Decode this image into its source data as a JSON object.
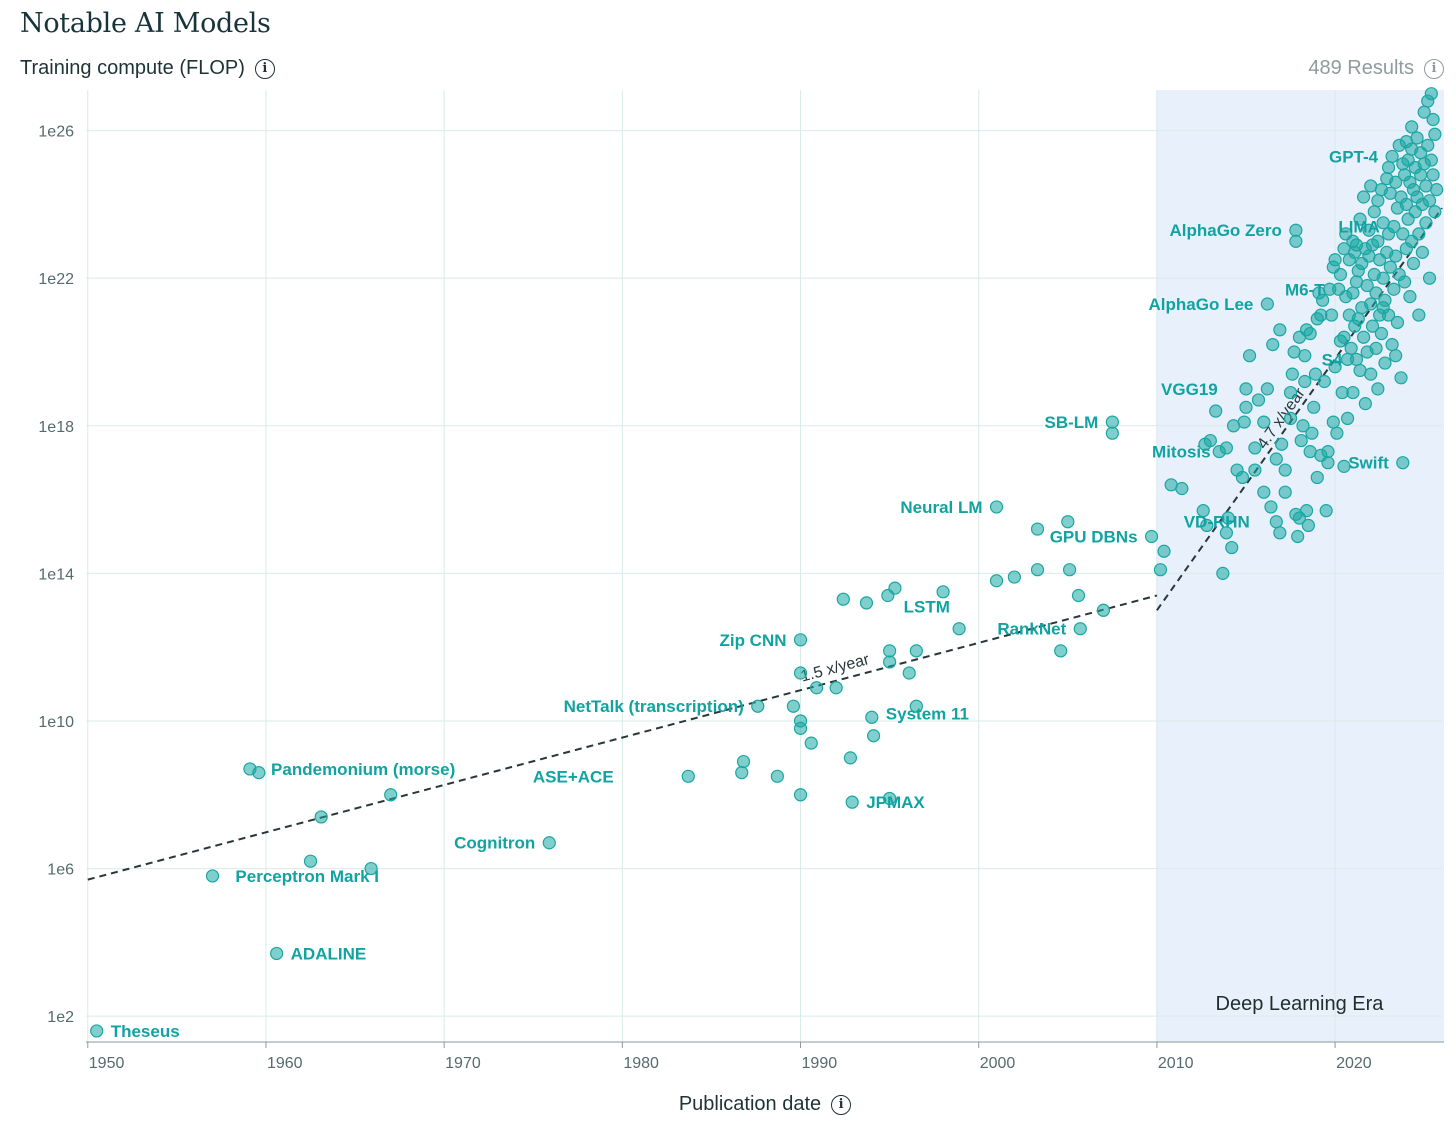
{
  "header": {
    "title": "Notable AI Models",
    "subtitle": "Training compute (FLOP)",
    "results": "489 Results"
  },
  "colors": {
    "point": "#19a7a3",
    "label": "#11a3a1",
    "era_band": "#e8f0fc",
    "grid": "#d8ebe9",
    "trend": "#27383a"
  },
  "icons": {
    "info": "info-circle-icon"
  },
  "chart_data": {
    "type": "scatter",
    "xlabel": "Publication date",
    "ylabel": "Training compute (FLOP)",
    "y_scale": "log",
    "xlim": [
      1949.9,
      2026
    ],
    "ylim_log10": [
      1.3,
      27.1
    ],
    "x_ticks": [
      "1950",
      "1960",
      "1970",
      "1980",
      "1990",
      "2000",
      "2010",
      "2020"
    ],
    "y_ticks": [
      "1e2",
      "1e6",
      "1e10",
      "1e14",
      "1e18",
      "1e22",
      "1e26"
    ],
    "region": {
      "label": "Deep Learning Era",
      "x_start": 2010,
      "x_end": 2026
    },
    "trends": [
      {
        "label": "1.5 x/year",
        "from": [
          1950,
          5.7
        ],
        "to": [
          2010,
          13.4
        ]
      },
      {
        "label": "4.7 x/year",
        "from": [
          2010,
          13.0
        ],
        "to": [
          2026,
          23.9
        ]
      }
    ],
    "labeled_points": [
      {
        "name": "Theseus",
        "x": 1950.5,
        "y": 1.6
      },
      {
        "name": "Perceptron Mark I",
        "x": 1957.5,
        "y": 5.8
      },
      {
        "name": "ADALINE",
        "x": 1960.6,
        "y": 3.7
      },
      {
        "name": "Pandemonium (morse)",
        "x": 1959.5,
        "y": 8.7
      },
      {
        "name": "Cognitron",
        "x": 1975.9,
        "y": 6.7
      },
      {
        "name": "ASE+ACE",
        "x": 1980.3,
        "y": 8.5
      },
      {
        "name": "NetTalk (transcription)",
        "x": 1987.6,
        "y": 10.4
      },
      {
        "name": "Zip CNN",
        "x": 1990.0,
        "y": 12.2
      },
      {
        "name": "System 11",
        "x": 1994.0,
        "y": 10.2
      },
      {
        "name": "JPMAX",
        "x": 1992.9,
        "y": 7.8
      },
      {
        "name": "LSTM",
        "x": 1995.0,
        "y": 13.1
      },
      {
        "name": "RankNet",
        "x": 2005.7,
        "y": 12.5
      },
      {
        "name": "Neural LM",
        "x": 2001.0,
        "y": 15.8
      },
      {
        "name": "GPU DBNs",
        "x": 2009.7,
        "y": 15.0
      },
      {
        "name": "SB-LM",
        "x": 2007.5,
        "y": 18.1
      },
      {
        "name": "Mitosis",
        "x": 2013.8,
        "y": 17.3
      },
      {
        "name": "VD-RHN",
        "x": 2016.0,
        "y": 15.4
      },
      {
        "name": "VGG19",
        "x": 2014.2,
        "y": 19.0
      },
      {
        "name": "AlphaGo Lee",
        "x": 2016.2,
        "y": 21.3
      },
      {
        "name": "AlphaGo Zero",
        "x": 2017.8,
        "y": 23.3
      },
      {
        "name": "M6-T",
        "x": 2020.2,
        "y": 21.7
      },
      {
        "name": "S4",
        "x": 2021.2,
        "y": 19.8
      },
      {
        "name": "Swift",
        "x": 2023.8,
        "y": 17.0
      },
      {
        "name": "LIMA",
        "x": 2023.3,
        "y": 23.4
      },
      {
        "name": "GPT-4",
        "x": 2023.2,
        "y": 25.3
      }
    ],
    "points": [
      [
        1950.5,
        1.6
      ],
      [
        1957.0,
        5.8
      ],
      [
        1959.1,
        8.7
      ],
      [
        1959.6,
        8.6
      ],
      [
        1960.6,
        3.7
      ],
      [
        1962.5,
        6.2
      ],
      [
        1963.1,
        7.4
      ],
      [
        1965.9,
        6.0
      ],
      [
        1967.0,
        8.0
      ],
      [
        1975.9,
        6.7
      ],
      [
        1983.7,
        8.5
      ],
      [
        1986.7,
        8.6
      ],
      [
        1986.8,
        8.9
      ],
      [
        1988.7,
        8.5
      ],
      [
        1987.6,
        10.4
      ],
      [
        1989.6,
        10.4
      ],
      [
        1990.0,
        10.0
      ],
      [
        1990.0,
        9.8
      ],
      [
        1990.0,
        8.0
      ],
      [
        1990.0,
        11.3
      ],
      [
        1990.0,
        12.2
      ],
      [
        1990.6,
        9.4
      ],
      [
        1990.9,
        10.9
      ],
      [
        1992.0,
        10.9
      ],
      [
        1992.4,
        13.3
      ],
      [
        1992.8,
        9.0
      ],
      [
        1992.9,
        7.8
      ],
      [
        1993.7,
        13.2
      ],
      [
        1994.0,
        10.1
      ],
      [
        1994.1,
        9.6
      ],
      [
        1994.9,
        13.4
      ],
      [
        1995.0,
        11.6
      ],
      [
        1995.0,
        11.9
      ],
      [
        1995.0,
        7.9
      ],
      [
        1995.3,
        13.6
      ],
      [
        1996.1,
        11.3
      ],
      [
        1996.5,
        11.9
      ],
      [
        1996.5,
        10.4
      ],
      [
        1998.0,
        13.5
      ],
      [
        1998.9,
        12.5
      ],
      [
        2001.0,
        15.8
      ],
      [
        2001.0,
        13.8
      ],
      [
        2002.0,
        13.9
      ],
      [
        2003.3,
        15.2
      ],
      [
        2003.3,
        14.1
      ],
      [
        2004.6,
        11.9
      ],
      [
        2005.0,
        15.4
      ],
      [
        2005.1,
        14.1
      ],
      [
        2005.6,
        13.4
      ],
      [
        2005.7,
        12.5
      ],
      [
        2007.0,
        13.0
      ],
      [
        2007.5,
        18.1
      ],
      [
        2007.5,
        17.8
      ],
      [
        2009.7,
        15.0
      ],
      [
        2010.4,
        14.6
      ],
      [
        2010.2,
        14.1
      ],
      [
        2010.8,
        16.4
      ],
      [
        2011.4,
        16.3
      ],
      [
        2012.6,
        15.7
      ],
      [
        2012.8,
        15.3
      ],
      [
        2012.7,
        17.5
      ],
      [
        2013.0,
        17.6
      ],
      [
        2013.3,
        18.4
      ],
      [
        2013.5,
        17.3
      ],
      [
        2013.7,
        14.0
      ],
      [
        2013.9,
        17.4
      ],
      [
        2013.9,
        15.1
      ],
      [
        2014.0,
        15.5
      ],
      [
        2014.2,
        14.7
      ],
      [
        2014.3,
        18.0
      ],
      [
        2014.5,
        16.8
      ],
      [
        2014.8,
        16.6
      ],
      [
        2014.9,
        18.1
      ],
      [
        2015.0,
        19.0
      ],
      [
        2015.0,
        18.5
      ],
      [
        2015.2,
        19.9
      ],
      [
        2015.5,
        17.4
      ],
      [
        2015.5,
        16.8
      ],
      [
        2015.7,
        18.7
      ],
      [
        2016.0,
        16.2
      ],
      [
        2016.2,
        19.0
      ],
      [
        2016.2,
        21.3
      ],
      [
        2016.4,
        15.8
      ],
      [
        2016.5,
        20.2
      ],
      [
        2016.7,
        15.4
      ],
      [
        2016.7,
        17.1
      ],
      [
        2016.9,
        15.1
      ],
      [
        2016.9,
        20.6
      ],
      [
        2017.2,
        16.8
      ],
      [
        2017.2,
        16.2
      ],
      [
        2017.5,
        18.9
      ],
      [
        2017.5,
        18.2
      ],
      [
        2017.6,
        19.4
      ],
      [
        2017.7,
        20.0
      ],
      [
        2017.8,
        23.3
      ],
      [
        2017.8,
        23.0
      ],
      [
        2017.8,
        15.6
      ],
      [
        2017.9,
        15.0
      ],
      [
        2018.0,
        20.4
      ],
      [
        2018.0,
        15.5
      ],
      [
        2018.1,
        17.6
      ],
      [
        2018.2,
        18.0
      ],
      [
        2018.3,
        19.2
      ],
      [
        2018.3,
        19.9
      ],
      [
        2018.4,
        20.6
      ],
      [
        2018.4,
        15.7
      ],
      [
        2018.5,
        15.3
      ],
      [
        2018.6,
        17.3
      ],
      [
        2018.7,
        17.8
      ],
      [
        2018.8,
        18.5
      ],
      [
        2018.9,
        19.4
      ],
      [
        2019.0,
        16.6
      ],
      [
        2019.0,
        20.9
      ],
      [
        2019.1,
        21.6
      ],
      [
        2019.2,
        17.2
      ],
      [
        2019.3,
        21.4
      ],
      [
        2019.4,
        19.2
      ],
      [
        2019.5,
        15.7
      ],
      [
        2019.6,
        17.3
      ],
      [
        2019.6,
        17.0
      ],
      [
        2019.7,
        21.7
      ],
      [
        2019.8,
        21.0
      ],
      [
        2019.9,
        18.1
      ],
      [
        2020.0,
        22.5
      ],
      [
        2020.0,
        19.6
      ],
      [
        2020.1,
        17.8
      ],
      [
        2020.2,
        21.7
      ],
      [
        2020.3,
        22.1
      ],
      [
        2020.4,
        18.9
      ],
      [
        2020.5,
        22.8
      ],
      [
        2020.5,
        20.4
      ],
      [
        2020.5,
        16.9
      ],
      [
        2020.6,
        21.5
      ],
      [
        2020.6,
        23.2
      ],
      [
        2020.7,
        19.8
      ],
      [
        2020.7,
        18.2
      ],
      [
        2020.8,
        22.5
      ],
      [
        2020.8,
        21.0
      ],
      [
        2020.9,
        20.1
      ],
      [
        2021.0,
        23.0
      ],
      [
        2021.0,
        21.6
      ],
      [
        2021.0,
        18.9
      ],
      [
        2021.1,
        22.7
      ],
      [
        2021.1,
        20.7
      ],
      [
        2021.2,
        19.8
      ],
      [
        2021.2,
        21.9
      ],
      [
        2021.3,
        22.2
      ],
      [
        2021.3,
        20.9
      ],
      [
        2021.4,
        23.6
      ],
      [
        2021.4,
        19.5
      ],
      [
        2021.5,
        22.4
      ],
      [
        2021.5,
        21.2
      ],
      [
        2021.6,
        20.4
      ],
      [
        2021.6,
        24.2
      ],
      [
        2021.7,
        22.8
      ],
      [
        2021.7,
        18.6
      ],
      [
        2021.8,
        21.8
      ],
      [
        2021.8,
        20.0
      ],
      [
        2021.9,
        23.3
      ],
      [
        2021.9,
        22.6
      ],
      [
        2022.0,
        24.5
      ],
      [
        2022.0,
        21.3
      ],
      [
        2022.0,
        19.4
      ],
      [
        2022.1,
        22.9
      ],
      [
        2022.1,
        20.7
      ],
      [
        2022.2,
        23.8
      ],
      [
        2022.2,
        22.1
      ],
      [
        2022.3,
        21.6
      ],
      [
        2022.3,
        20.1
      ],
      [
        2022.4,
        24.1
      ],
      [
        2022.4,
        23.0
      ],
      [
        2022.4,
        19.0
      ],
      [
        2022.5,
        22.5
      ],
      [
        2022.5,
        21.0
      ],
      [
        2022.6,
        24.4
      ],
      [
        2022.6,
        20.5
      ],
      [
        2022.7,
        23.5
      ],
      [
        2022.7,
        22.0
      ],
      [
        2022.8,
        21.4
      ],
      [
        2022.8,
        19.7
      ],
      [
        2022.9,
        24.7
      ],
      [
        2022.9,
        22.7
      ],
      [
        2023.0,
        25.0
      ],
      [
        2023.0,
        23.2
      ],
      [
        2023.0,
        21.0
      ],
      [
        2023.1,
        24.3
      ],
      [
        2023.1,
        22.3
      ],
      [
        2023.2,
        20.2
      ],
      [
        2023.2,
        25.3
      ],
      [
        2023.3,
        23.4
      ],
      [
        2023.3,
        21.7
      ],
      [
        2023.4,
        24.6
      ],
      [
        2023.4,
        22.6
      ],
      [
        2023.5,
        23.9
      ],
      [
        2023.5,
        20.8
      ],
      [
        2023.6,
        25.6
      ],
      [
        2023.6,
        22.1
      ],
      [
        2023.7,
        24.2
      ],
      [
        2023.7,
        19.3
      ],
      [
        2023.8,
        17.0
      ],
      [
        2023.8,
        25.1
      ],
      [
        2023.8,
        23.2
      ],
      [
        2023.9,
        24.8
      ],
      [
        2023.9,
        21.9
      ],
      [
        2024.0,
        25.7
      ],
      [
        2024.0,
        24.0
      ],
      [
        2024.0,
        22.8
      ],
      [
        2024.1,
        25.2
      ],
      [
        2024.1,
        23.6
      ],
      [
        2024.2,
        24.6
      ],
      [
        2024.2,
        21.5
      ],
      [
        2024.3,
        25.5
      ],
      [
        2024.3,
        23.0
      ],
      [
        2024.4,
        24.4
      ],
      [
        2024.4,
        22.4
      ],
      [
        2024.5,
        25.0
      ],
      [
        2024.5,
        23.8
      ],
      [
        2024.6,
        25.8
      ],
      [
        2024.6,
        24.2
      ],
      [
        2024.7,
        23.2
      ],
      [
        2024.7,
        21.0
      ],
      [
        2024.8,
        25.4
      ],
      [
        2024.8,
        24.8
      ],
      [
        2024.9,
        24.0
      ],
      [
        2024.9,
        22.7
      ],
      [
        2025.0,
        26.5
      ],
      [
        2025.0,
        25.1
      ],
      [
        2025.1,
        24.5
      ],
      [
        2025.1,
        23.5
      ],
      [
        2025.2,
        26.8
      ],
      [
        2025.2,
        25.6
      ],
      [
        2025.3,
        24.1
      ],
      [
        2025.3,
        22.0
      ],
      [
        2025.4,
        27.0
      ],
      [
        2025.4,
        25.2
      ],
      [
        2025.5,
        24.8
      ],
      [
        2025.5,
        26.3
      ],
      [
        2025.6,
        23.8
      ],
      [
        2025.6,
        25.9
      ],
      [
        2025.7,
        24.4
      ],
      [
        2019.2,
        21.0
      ],
      [
        2018.6,
        20.5
      ],
      [
        2019.9,
        22.3
      ],
      [
        2020.3,
        20.3
      ],
      [
        2021.2,
        22.9
      ],
      [
        2022.7,
        21.2
      ],
      [
        2024.3,
        26.1
      ],
      [
        2023.4,
        19.9
      ],
      [
        2017.0,
        17.5
      ],
      [
        2016.0,
        18.1
      ]
    ]
  }
}
